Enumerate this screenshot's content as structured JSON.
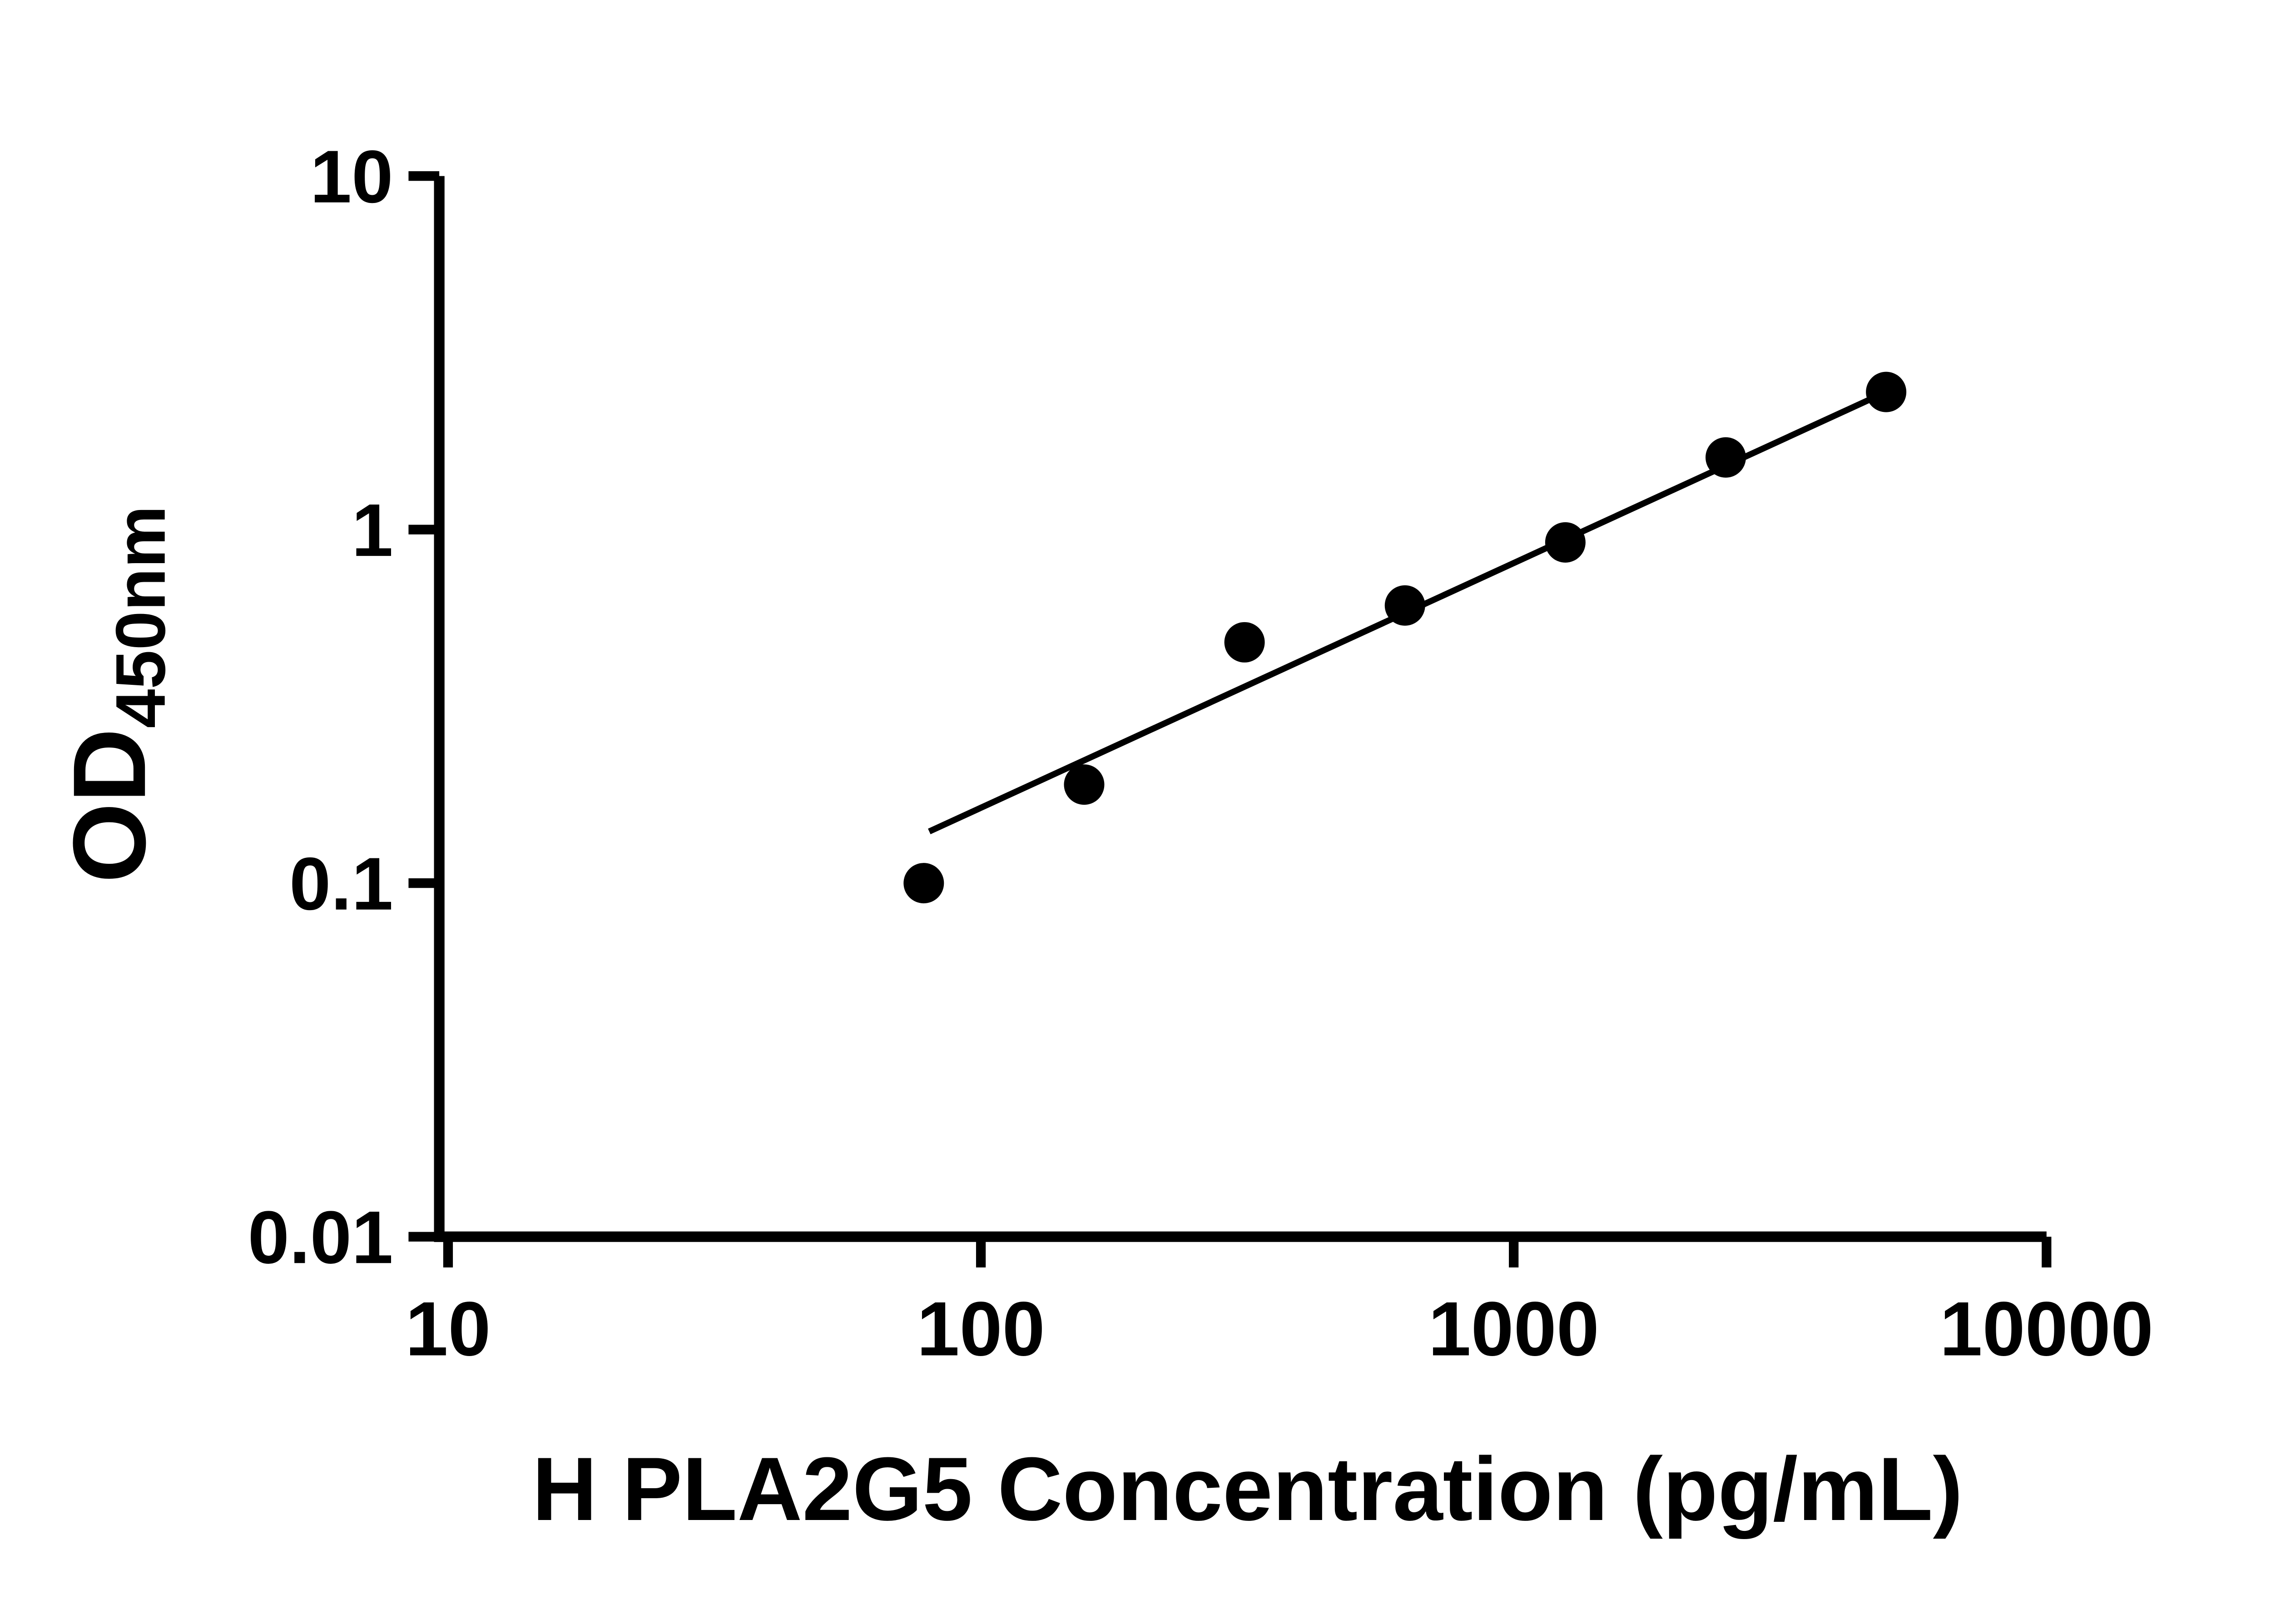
{
  "page": {
    "background": "#ffffff",
    "ink": "#000000"
  },
  "chart_data": {
    "type": "scatter",
    "title": "",
    "xlabel": "H PLA2G5 Concentration (pg/mL)",
    "ylabel_main": "OD",
    "ylabel_sub": "450nm",
    "x_scale": "log",
    "y_scale": "log",
    "xlim": [
      10,
      10000
    ],
    "ylim": [
      0.01,
      10
    ],
    "x_ticks": [
      10,
      100,
      1000,
      10000
    ],
    "x_tick_labels": [
      "10",
      "100",
      "1000",
      "10000"
    ],
    "y_ticks": [
      0.01,
      0.1,
      1,
      10
    ],
    "y_tick_labels": [
      "0.01",
      "0.1",
      "1",
      "10"
    ],
    "grid": false,
    "legend": false,
    "series": [
      {
        "name": "standard-curve-points",
        "points": [
          {
            "x": 78.125,
            "y": 0.1
          },
          {
            "x": 156.25,
            "y": 0.19
          },
          {
            "x": 312.5,
            "y": 0.48
          },
          {
            "x": 625,
            "y": 0.61
          },
          {
            "x": 1250,
            "y": 0.92
          },
          {
            "x": 2500,
            "y": 1.6
          },
          {
            "x": 5000,
            "y": 2.45
          }
        ]
      }
    ],
    "trend_line": {
      "x1": 80,
      "y1": 0.14,
      "x2": 5000,
      "y2": 2.45
    },
    "marker_color": "#000000",
    "line_color": "#000000",
    "axis_color": "#000000"
  }
}
